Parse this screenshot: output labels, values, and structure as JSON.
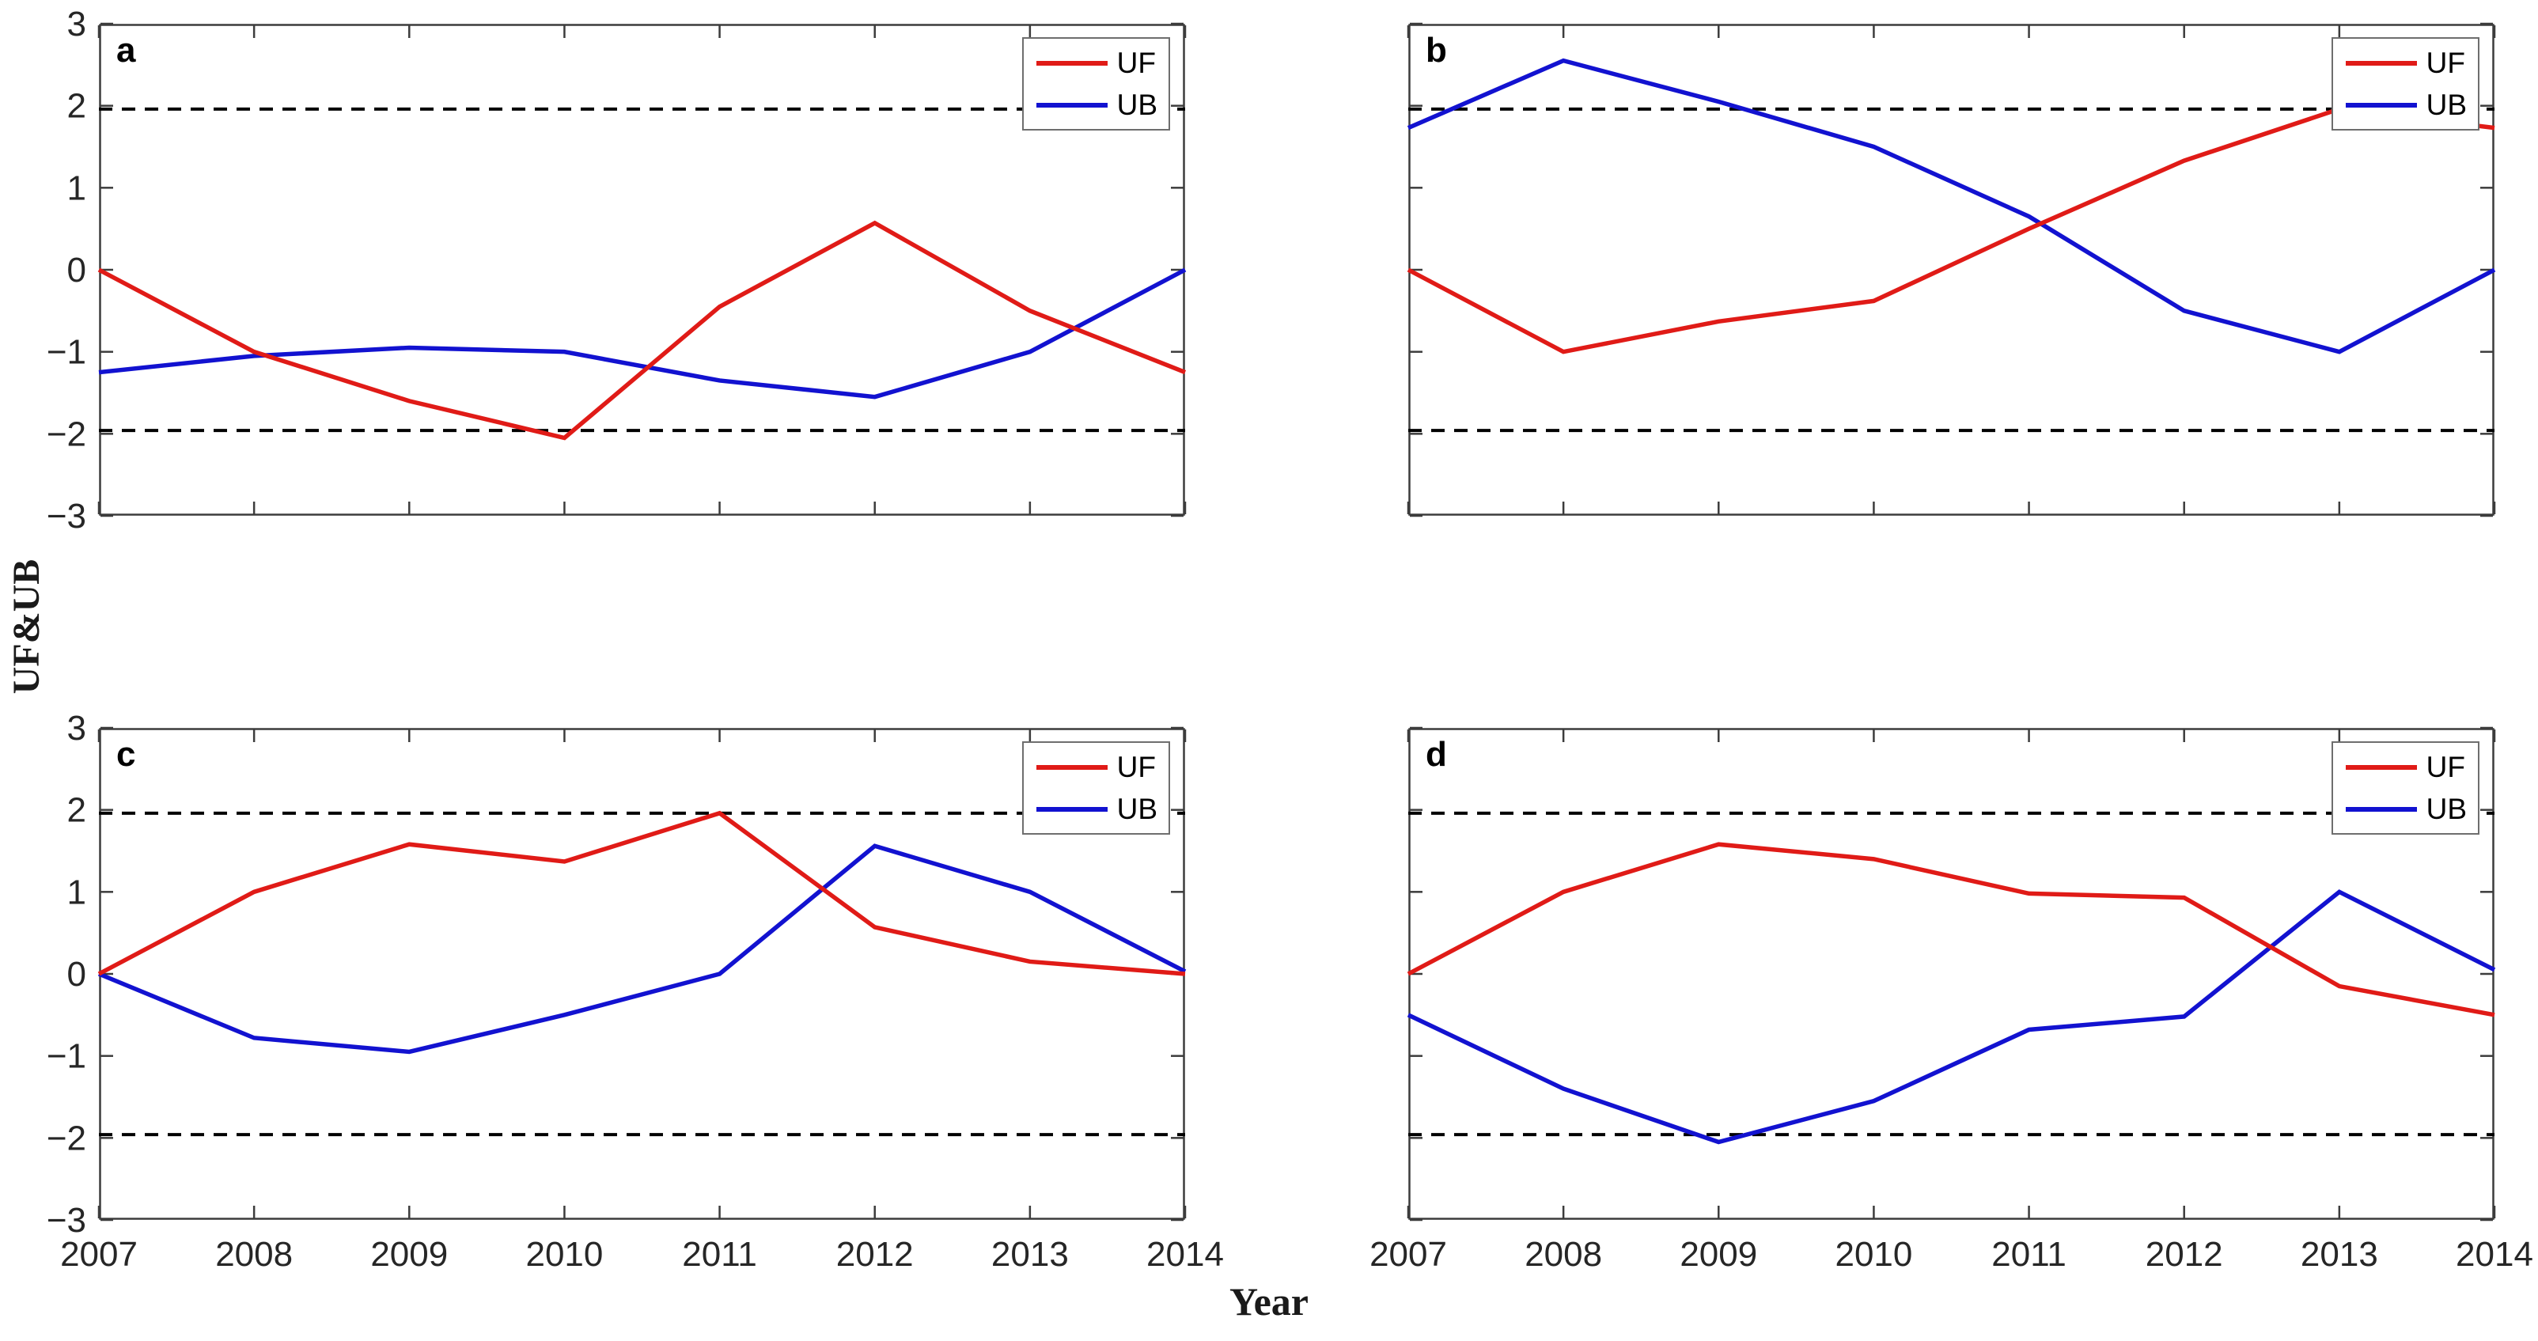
{
  "figure": {
    "ylabel": "UF&UB",
    "xlabel": "Year",
    "background": "#ffffff",
    "panel_letters": [
      "a",
      "b",
      "c",
      "d"
    ]
  },
  "legend": {
    "position": "top-right",
    "entries": [
      {
        "label": "UF",
        "color": "#e01b17"
      },
      {
        "label": "UB",
        "color": "#1212d0"
      }
    ]
  },
  "axes": {
    "years": [
      "2007",
      "2008",
      "2009",
      "2010",
      "2011",
      "2012",
      "2013",
      "2014"
    ],
    "ylim": [
      -3,
      3
    ],
    "yticks": [
      3,
      2,
      1,
      0,
      -1,
      -2,
      -3
    ],
    "yticklabels": [
      "3",
      "2",
      "1",
      "0",
      "−1",
      "−2",
      "−3"
    ],
    "thresholds": [
      1.96,
      -1.96
    ],
    "axis_color": "#3c3c3c",
    "tick_label_color": "#262626",
    "dashed_line_color": "#000000"
  },
  "chart_data": [
    {
      "type": "line",
      "panel": "a",
      "x": [
        2007,
        2008,
        2009,
        2010,
        2011,
        2012,
        2013,
        2014
      ],
      "ylim": [
        -3,
        3
      ],
      "dashed_hlines": [
        1.96,
        -1.96
      ],
      "show_ytick_labels": true,
      "show_xtick_labels": false,
      "legend_position": "top-right",
      "series": [
        {
          "name": "UF",
          "color": "#e01b17",
          "values": [
            0,
            -1.0,
            -1.6,
            -2.05,
            -0.45,
            0.57,
            -0.5,
            -1.25
          ]
        },
        {
          "name": "UB",
          "color": "#1212d0",
          "values": [
            -1.25,
            -1.05,
            -0.95,
            -1.0,
            -1.35,
            -1.55,
            -1.0,
            0.0
          ]
        }
      ]
    },
    {
      "type": "line",
      "panel": "b",
      "x": [
        2007,
        2008,
        2009,
        2010,
        2011,
        2012,
        2013,
        2014
      ],
      "ylim": [
        -3,
        3
      ],
      "dashed_hlines": [
        1.96,
        -1.96
      ],
      "show_ytick_labels": false,
      "show_xtick_labels": false,
      "legend_position": "top-right",
      "series": [
        {
          "name": "UF",
          "color": "#e01b17",
          "values": [
            0,
            -1.0,
            -0.63,
            -0.38,
            0.5,
            1.33,
            1.96,
            1.73
          ]
        },
        {
          "name": "UB",
          "color": "#1212d0",
          "values": [
            1.73,
            2.55,
            2.05,
            1.5,
            0.65,
            -0.5,
            -1.0,
            0.0
          ]
        }
      ]
    },
    {
      "type": "line",
      "panel": "c",
      "x": [
        2007,
        2008,
        2009,
        2010,
        2011,
        2012,
        2013,
        2014
      ],
      "ylim": [
        -3,
        3
      ],
      "dashed_hlines": [
        1.96,
        -1.96
      ],
      "show_ytick_labels": true,
      "show_xtick_labels": true,
      "legend_position": "top-right",
      "series": [
        {
          "name": "UF",
          "color": "#e01b17",
          "values": [
            0,
            1.0,
            1.58,
            1.37,
            1.96,
            0.57,
            0.15,
            0.0
          ]
        },
        {
          "name": "UB",
          "color": "#1212d0",
          "values": [
            0,
            -0.78,
            -0.95,
            -0.5,
            0.0,
            1.56,
            1.0,
            0.03
          ]
        }
      ]
    },
    {
      "type": "line",
      "panel": "d",
      "x": [
        2007,
        2008,
        2009,
        2010,
        2011,
        2012,
        2013,
        2014
      ],
      "ylim": [
        -3,
        3
      ],
      "dashed_hlines": [
        1.96,
        -1.96
      ],
      "show_ytick_labels": false,
      "show_xtick_labels": true,
      "legend_position": "top-right",
      "series": [
        {
          "name": "UF",
          "color": "#e01b17",
          "values": [
            0,
            1.0,
            1.58,
            1.4,
            0.98,
            0.93,
            -0.15,
            -0.5
          ]
        },
        {
          "name": "UB",
          "color": "#1212d0",
          "values": [
            -0.5,
            -1.4,
            -2.05,
            -1.55,
            -0.68,
            -0.52,
            1.0,
            0.05
          ]
        }
      ]
    }
  ]
}
